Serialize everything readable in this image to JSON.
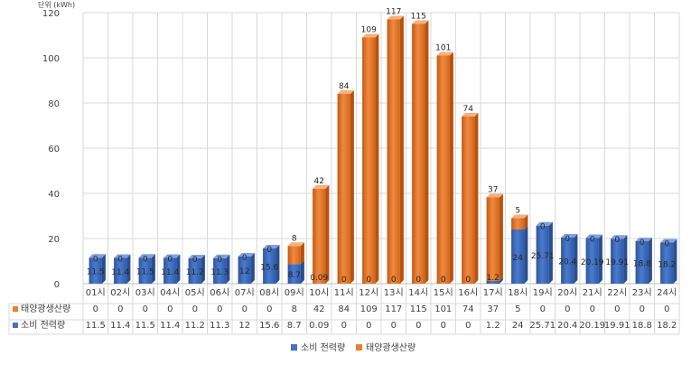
{
  "chart_data": {
    "type": "bar",
    "stacked": true,
    "unit_label": "단위 (kWh)",
    "ylim": [
      0,
      120
    ],
    "yticks": [
      0,
      20,
      40,
      60,
      80,
      100,
      120
    ],
    "grid": true,
    "legend_position": "bottom",
    "categories": [
      "01시",
      "02시",
      "03시",
      "04시",
      "05시",
      "06시",
      "07시",
      "08시",
      "09시",
      "10시",
      "11시",
      "12시",
      "13시",
      "14시",
      "15시",
      "16시",
      "17시",
      "18시",
      "19시",
      "20시",
      "21시",
      "22시",
      "23시",
      "24시"
    ],
    "series": [
      {
        "name": "소비 전력량",
        "color": "#4472C4",
        "values": [
          11.5,
          11.4,
          11.5,
          11.4,
          11.2,
          11.3,
          12,
          15.6,
          8.7,
          0.09,
          0,
          0,
          0,
          0,
          0,
          0,
          1.2,
          24,
          25.71,
          20.4,
          20.19,
          19.91,
          18.8,
          18.2
        ]
      },
      {
        "name": "태양광생산량",
        "color": "#ED7D31",
        "values": [
          0,
          0,
          0,
          0,
          0,
          0,
          0,
          0,
          8,
          42,
          84,
          109,
          117,
          115,
          101,
          74,
          37,
          5,
          0,
          0,
          0,
          0,
          0,
          0
        ]
      }
    ],
    "table_rows": [
      "태양광생산량",
      "소비 전력량"
    ],
    "table_values": {
      "태양광생산량": [
        "0",
        "0",
        "0",
        "0",
        "0",
        "0",
        "0",
        "0",
        "8",
        "42",
        "84",
        "109",
        "117",
        "115",
        "101",
        "74",
        "37",
        "5",
        "0",
        "0",
        "0",
        "0",
        "0",
        "0"
      ],
      "소비 전력량": [
        "11.5",
        "11.4",
        "11.5",
        "11.4",
        "11.2",
        "11.3",
        "12",
        "15.6",
        "8.7",
        "0.09",
        "0",
        "0",
        "0",
        "0",
        "0",
        "0",
        "1.2",
        "24",
        "25.71",
        "20.4",
        "20.19",
        "19.91",
        "18.8",
        "18.2"
      ]
    }
  },
  "legend": [
    {
      "label": "소비 전력량",
      "color": "#4472C4"
    },
    {
      "label": "태양광생산량",
      "color": "#ED7D31"
    }
  ]
}
